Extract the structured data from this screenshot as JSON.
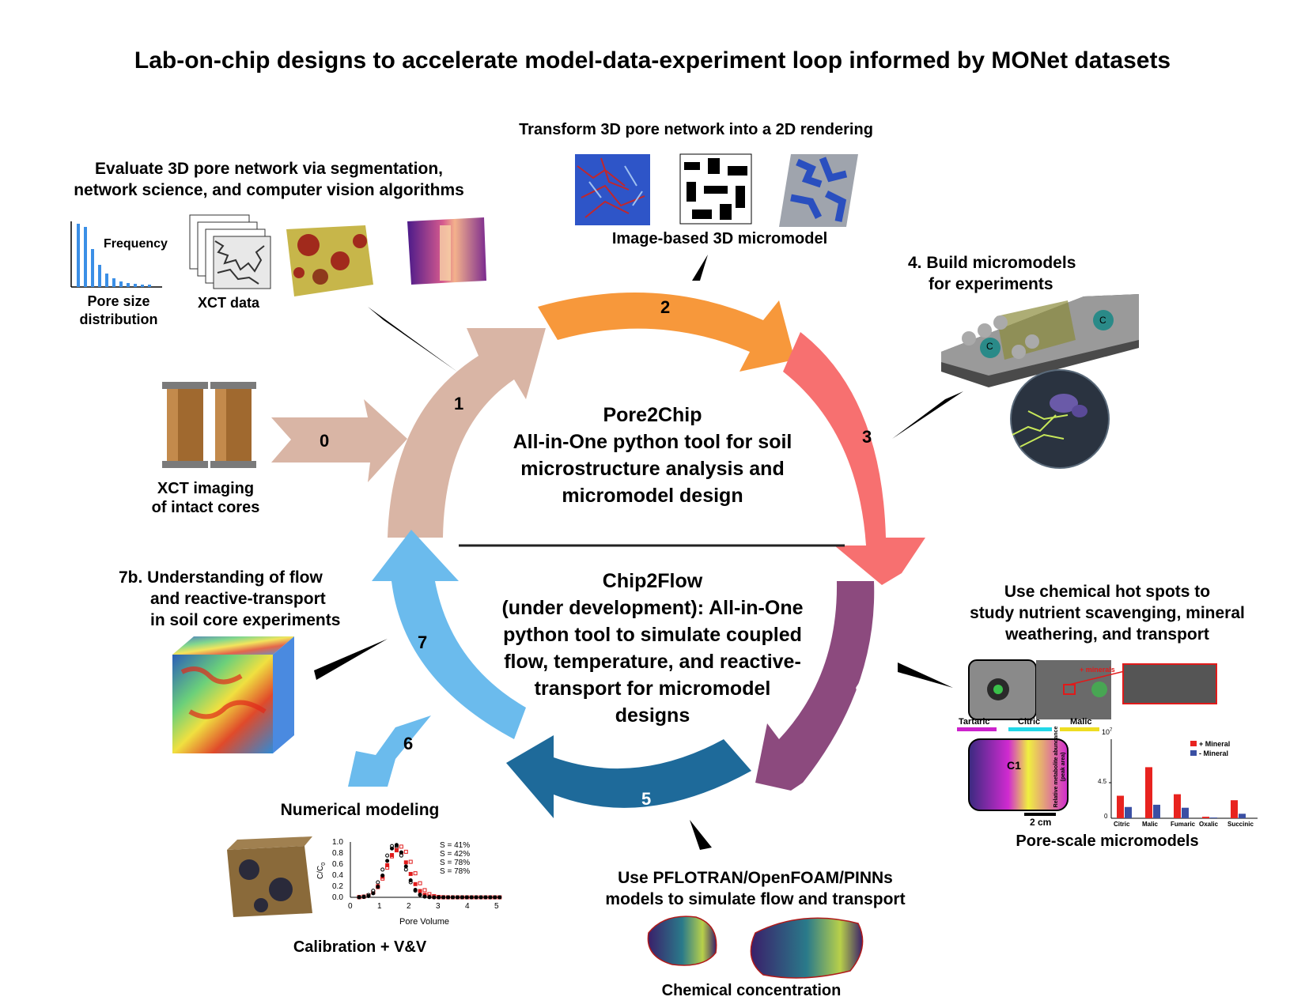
{
  "title": "Lab-on-chip designs to accelerate model-data-experiment loop informed by MONet datasets",
  "center": {
    "top_lines": [
      "Pore2Chip",
      "All-in-One python tool for soil",
      "microstructure analysis and",
      "micromodel design"
    ],
    "bottom_lines": [
      "Chip2Flow",
      "(under development): All-in-One",
      "python tool to simulate coupled",
      "flow, temperature, and reactive-",
      "transport for micromodel",
      "designs"
    ]
  },
  "steps": {
    "s0": "0",
    "s1": "1",
    "s2": "2",
    "s3": "3",
    "s4": "4",
    "s5": "5",
    "s6": "6",
    "s7": "7"
  },
  "colors": {
    "s0": "#d9b5a5",
    "s1": "#d9b5a5",
    "s2": "#f7983b",
    "s3": "#f77070",
    "s4": "#8c4a7e",
    "s5": "#1e6a9a",
    "s6": "#6bbbed",
    "s7": "#6bbbed"
  },
  "panels": {
    "xct": {
      "lines": [
        "XCT imaging",
        "of intact cores"
      ]
    },
    "evaluate": {
      "heading": [
        "Evaluate 3D pore network via segmentation,",
        "network science, and computer vision algorithms"
      ],
      "frequency": "Frequency",
      "psd": [
        "Pore size",
        "distribution"
      ],
      "xct_data": "XCT data"
    },
    "transform": {
      "heading": "Transform 3D pore network into a 2D rendering",
      "caption": "Image-based 3D micromodel"
    },
    "build": {
      "lines": [
        "4. Build micromodels",
        "for experiments"
      ],
      "chip_label": "C"
    },
    "hotspots": {
      "heading": [
        "Use chemical hot spots to",
        "study nutrient scavenging, mineral",
        "weathering, and transport"
      ],
      "minerals": "+ minerals",
      "acids": [
        "Tartaric",
        "Citric",
        "Malic"
      ],
      "c1": "C1",
      "scale": "2 cm",
      "caption": "Pore-scale micromodels",
      "bar_chart": {
        "ylabel": [
          "Relative metabolite abundance",
          "(peak area)"
        ],
        "exponent": "10",
        "exp_power": "7",
        "tick_mid": "4.5",
        "tick_zero": "0",
        "legend": [
          "+ Mineral",
          "- Mineral"
        ]
      }
    },
    "understanding": {
      "lines": [
        "7b. Understanding of flow",
        "and reactive-transport",
        "in soil core experiments"
      ]
    },
    "numerical": {
      "heading": "Numerical modeling",
      "caption": "Calibration + V&V",
      "xlabel": "Pore Volume",
      "ylabel": "C/C",
      "ylabel_sub": "0",
      "yticks": [
        "1.0",
        "0.8",
        "0.6",
        "0.4",
        "0.2",
        "0.0"
      ],
      "xticks": [
        "0",
        "1",
        "2",
        "3",
        "4",
        "5"
      ],
      "legend": [
        "S = 41%",
        "S = 42%",
        "S = 78%",
        "S = 78%"
      ]
    },
    "pflotran": {
      "heading": [
        "Use PFLOTRAN/OpenFOAM/PINNs",
        "models to simulate flow and transport"
      ],
      "caption": "Chemical concentration"
    }
  },
  "chart_data": {
    "type": "bar",
    "categories": [
      "Citric",
      "Malic",
      "Fumaric",
      "Oxalic",
      "Succinic"
    ],
    "ylim": [
      0,
      10
    ],
    "series": [
      {
        "name": "+ Mineral",
        "values": [
          3.0,
          6.8,
          3.2,
          0.2,
          2.4
        ]
      },
      {
        "name": "- Mineral",
        "values": [
          1.5,
          1.8,
          1.4,
          0.1,
          0.6
        ]
      }
    ],
    "colors": [
      "#e8231f",
      "#3a4fa3"
    ]
  }
}
